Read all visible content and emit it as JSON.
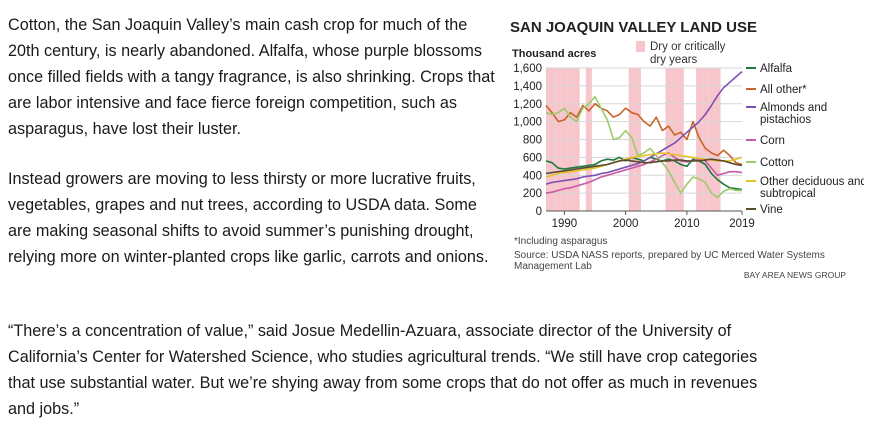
{
  "article": {
    "paragraph_1": "Cotton, the San Joaquin Valley’s main cash crop for much of the 20th century, is nearly abandoned. Alfalfa, whose purple blossoms once filled fields with a tangy fragrance, is also shrinking. Crops that are labor intensive and face fierce foreign competition, such as asparagus, have lost their luster.",
    "paragraph_2": "Instead growers are moving to less thirsty or more lucrative fruits, vegetables, grapes and nut trees, according to USDA data. Some are making seasonal shifts to avoid summer’s punishing drought, relying more on winter-planted crops like garlic, carrots and onions.",
    "paragraph_3": "“There’s a concentration of value,” said Josue Medellin-Azuara, associate director of the University of California’s Center for Watershed Science, who studies agricultural trends. “We still have crop categories that use substantial water. But we’re shying away from some crops that do not offer as much in revenues and jobs.”"
  },
  "chart_data": {
    "type": "line",
    "title": "SAN JOAQUIN VALLEY LAND USE",
    "ylabel": "Thousand acres",
    "xlabel": "",
    "ylim": [
      0,
      1600
    ],
    "xlim": [
      1987,
      2019
    ],
    "y_ticks": [
      "0",
      "200",
      "400",
      "600",
      "800",
      "1,000",
      "1,200",
      "1,400",
      "1,600"
    ],
    "x_ticks": [
      "1990",
      "2000",
      "2010",
      "2019"
    ],
    "grid": "horizontal",
    "dry_years_label": "Dry or critically dry years",
    "dry_year_color": "#f7c6cc",
    "dry_years": [
      1987,
      1988,
      1989,
      1990,
      1991,
      1992,
      1994,
      2001,
      2002,
      2007,
      2008,
      2009,
      2012,
      2013,
      2014,
      2015
    ],
    "footnote": "*Including asparagus",
    "source": "Source: USDA NASS reports, prepared by UC Merced Water Systems Management Lab",
    "credit": "BAY AREA NEWS GROUP",
    "x": [
      1987,
      1988,
      1989,
      1990,
      1991,
      1992,
      1993,
      1994,
      1995,
      1996,
      1997,
      1998,
      1999,
      2000,
      2001,
      2002,
      2003,
      2004,
      2005,
      2006,
      2007,
      2008,
      2009,
      2010,
      2011,
      2012,
      2013,
      2014,
      2015,
      2016,
      2017,
      2018,
      2019
    ],
    "series": [
      {
        "name": "Alfalfa",
        "color": "#1f7a3f",
        "values": [
          560,
          540,
          480,
          470,
          480,
          490,
          500,
          510,
          520,
          560,
          580,
          570,
          600,
          560,
          600,
          580,
          560,
          600,
          580,
          560,
          580,
          560,
          520,
          500,
          580,
          560,
          520,
          420,
          350,
          300,
          260,
          250,
          240
        ]
      },
      {
        "name": "All other*",
        "color": "#c8632a",
        "values": [
          1180,
          1100,
          1000,
          1020,
          1100,
          1050,
          1180,
          1120,
          1200,
          1150,
          1120,
          1050,
          1080,
          1150,
          1100,
          1080,
          1000,
          950,
          1050,
          900,
          950,
          850,
          880,
          800,
          1000,
          820,
          700,
          650,
          620,
          680,
          620,
          540,
          520
        ]
      },
      {
        "name": "Almonds and pistachios",
        "color": "#7e4fb3",
        "values": [
          300,
          320,
          330,
          340,
          350,
          360,
          380,
          390,
          400,
          420,
          430,
          450,
          470,
          490,
          510,
          530,
          560,
          600,
          640,
          680,
          720,
          760,
          820,
          880,
          940,
          1000,
          1080,
          1180,
          1290,
          1380,
          1440,
          1500,
          1560
        ]
      },
      {
        "name": "Corn",
        "color": "#c85aa8",
        "values": [
          200,
          210,
          230,
          250,
          260,
          280,
          300,
          320,
          350,
          380,
          400,
          420,
          440,
          460,
          480,
          500,
          520,
          550,
          580,
          620,
          650,
          600,
          560,
          550,
          560,
          580,
          560,
          480,
          400,
          420,
          440,
          440,
          430
        ]
      },
      {
        "name": "Cotton",
        "color": "#9ccb6b",
        "values": [
          1100,
          1080,
          1100,
          1150,
          1050,
          1000,
          1150,
          1200,
          1280,
          1150,
          1020,
          800,
          820,
          900,
          820,
          620,
          650,
          700,
          620,
          540,
          450,
          320,
          200,
          300,
          380,
          360,
          320,
          200,
          150,
          220,
          250,
          230,
          230
        ]
      },
      {
        "name": "Other deciduous and subtropical",
        "color": "#e6c229",
        "values": [
          380,
          400,
          420,
          430,
          440,
          450,
          460,
          470,
          480,
          500,
          520,
          540,
          560,
          580,
          600,
          610,
          620,
          630,
          640,
          650,
          640,
          630,
          620,
          610,
          600,
          590,
          580,
          570,
          560,
          560,
          560,
          580,
          600
        ]
      },
      {
        "name": "Vine",
        "color": "#5a4a2e",
        "values": [
          420,
          430,
          440,
          450,
          460,
          470,
          480,
          490,
          500,
          510,
          520,
          540,
          560,
          570,
          560,
          550,
          540,
          540,
          550,
          560,
          560,
          570,
          570,
          560,
          560,
          560,
          570,
          580,
          570,
          560,
          540,
          520,
          510
        ]
      }
    ]
  }
}
